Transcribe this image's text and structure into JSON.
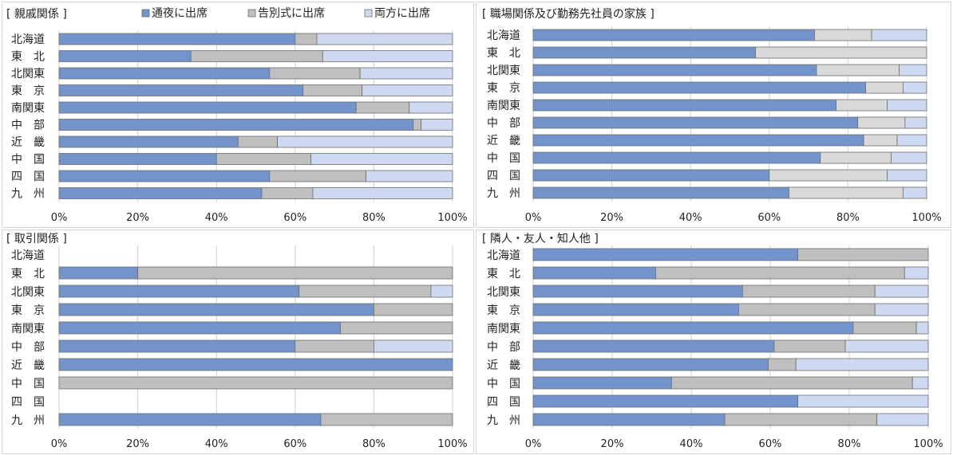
{
  "legend": {
    "items": [
      {
        "label": "通夜に出席",
        "color": "#7294ca"
      },
      {
        "label": "告別式に出席",
        "color": "#bfbfbf"
      },
      {
        "label": "両方に出席",
        "color": "#cdd9f0"
      }
    ]
  },
  "colors": {
    "bar_stroke": "#6e6e6e",
    "grid": "#d0d0d0",
    "alt_series2": "#d9d9d9"
  },
  "chart_data": [
    {
      "type": "bar",
      "orientation": "horizontal",
      "stacked": true,
      "title": "[ 親戚関係 ]",
      "xlim": [
        0,
        100
      ],
      "x_ticks": [
        "0%",
        "20%",
        "40%",
        "60%",
        "80%",
        "100%"
      ],
      "categories": [
        "北海道",
        "東　北",
        "北関東",
        "東　京",
        "南関東",
        "中　部",
        "近　畿",
        "中　国",
        "四　国",
        "九　州"
      ],
      "series": [
        {
          "name": "通夜に出席",
          "values": [
            60,
            33.5,
            53.5,
            62,
            75.5,
            90,
            45.5,
            40,
            53.5,
            51.5
          ]
        },
        {
          "name": "告別式に出席",
          "values": [
            5.5,
            33.5,
            23,
            15,
            13.5,
            2,
            10,
            24,
            24.5,
            13
          ]
        },
        {
          "name": "両方に出席",
          "values": [
            34.5,
            33,
            23.5,
            23,
            11,
            8,
            44.5,
            36,
            22,
            35.5
          ]
        }
      ]
    },
    {
      "type": "bar",
      "orientation": "horizontal",
      "stacked": true,
      "title": "[ 職場関係及び勤務先社員の家族 ]",
      "xlim": [
        0,
        100
      ],
      "x_ticks": [
        "0%",
        "20%",
        "40%",
        "60%",
        "80%",
        "100%"
      ],
      "categories": [
        "北海道",
        "東　北",
        "北関東",
        "東　京",
        "南関東",
        "中　部",
        "近　畿",
        "中　国",
        "四　国",
        "九　州"
      ],
      "series": [
        {
          "name": "通夜に出席",
          "values": [
            71.5,
            56.5,
            72,
            84.5,
            77,
            82.5,
            84,
            73,
            60,
            65
          ]
        },
        {
          "name": "告別式に出席",
          "values": [
            14.5,
            43.5,
            21,
            9.5,
            13,
            12,
            8.5,
            18,
            30,
            29
          ]
        },
        {
          "name": "両方に出席",
          "values": [
            14,
            0,
            7,
            6,
            10,
            5.5,
            7.5,
            9,
            10,
            6
          ]
        }
      ]
    },
    {
      "type": "bar",
      "orientation": "horizontal",
      "stacked": true,
      "title": "[ 取引関係 ]",
      "xlim": [
        0,
        100
      ],
      "x_ticks": [
        "0%",
        "20%",
        "40%",
        "60%",
        "80%",
        "100%"
      ],
      "categories": [
        "北海道",
        "東　北",
        "北関東",
        "東　京",
        "南関東",
        "中　部",
        "近　畿",
        "中　国",
        "四　国",
        "九　州"
      ],
      "series": [
        {
          "name": "通夜に出席",
          "values": [
            0,
            20,
            61,
            80,
            71.5,
            60,
            100,
            0,
            0,
            66.5
          ]
        },
        {
          "name": "告別式に出席",
          "values": [
            0,
            80,
            33.5,
            20,
            28.5,
            20,
            0,
            100,
            0,
            33.5
          ]
        },
        {
          "name": "両方に出席",
          "values": [
            0,
            0,
            5.5,
            0,
            0,
            20,
            0,
            0,
            0,
            0
          ]
        }
      ]
    },
    {
      "type": "bar",
      "orientation": "horizontal",
      "stacked": true,
      "title": "[ 隣人・友人・知人他 ]",
      "xlim": [
        0,
        100
      ],
      "x_ticks": [
        "0%",
        "20%",
        "40%",
        "60%",
        "80%",
        "100%"
      ],
      "categories": [
        "北海道",
        "東　北",
        "北関東",
        "東　京",
        "南関東",
        "中　部",
        "近　畿",
        "中　国",
        "四　国",
        "九　州"
      ],
      "series": [
        {
          "name": "通夜に出席",
          "values": [
            67,
            31,
            53,
            52,
            81,
            61,
            59.5,
            35,
            67,
            48.5
          ]
        },
        {
          "name": "告別式に出席",
          "values": [
            33,
            63,
            33.5,
            34.5,
            16,
            18,
            7,
            61,
            0,
            38.5
          ]
        },
        {
          "name": "両方に出席",
          "values": [
            0,
            6,
            13.5,
            13.5,
            3,
            21,
            33.5,
            4,
            33,
            13
          ]
        }
      ]
    }
  ]
}
